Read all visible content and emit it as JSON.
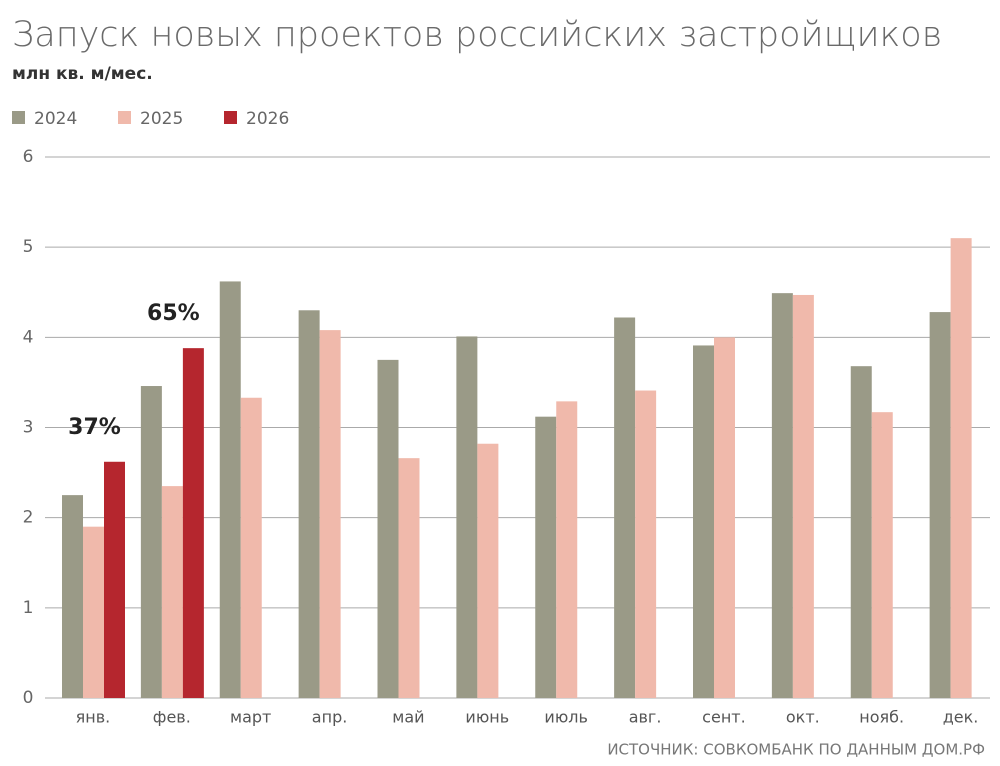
{
  "chart_data": {
    "type": "bar",
    "title": "Запуск новых проектов российских застройщиков",
    "subtitle": "млн кв. м/мес.",
    "source": "ИСТОЧНИК: СОВКОМБАНК ПО ДАННЫМ ДОМ.РФ",
    "categories": [
      "янв.",
      "фев.",
      "март",
      "апр.",
      "май",
      "июнь",
      "июль",
      "авг.",
      "сент.",
      "окт.",
      "нояб.",
      "дек."
    ],
    "series": [
      {
        "name": "2024",
        "color": "#9a9a87",
        "values": [
          2.25,
          3.46,
          4.62,
          4.3,
          3.75,
          4.01,
          3.12,
          4.22,
          3.91,
          4.49,
          3.68,
          4.28
        ]
      },
      {
        "name": "2025",
        "color": "#f0b9ab",
        "values": [
          1.9,
          2.35,
          3.33,
          4.08,
          2.66,
          2.82,
          3.29,
          3.41,
          4.0,
          4.47,
          3.17,
          5.1
        ]
      },
      {
        "name": "2026",
        "color": "#b5262e",
        "values": [
          2.62,
          3.88,
          null,
          null,
          null,
          null,
          null,
          null,
          null,
          null,
          null,
          null
        ]
      }
    ],
    "annotations": [
      "37%",
      "65%"
    ],
    "ylim": [
      0,
      6
    ],
    "yticks": [
      0,
      1,
      2,
      3,
      4,
      5,
      6
    ],
    "grid": true
  }
}
